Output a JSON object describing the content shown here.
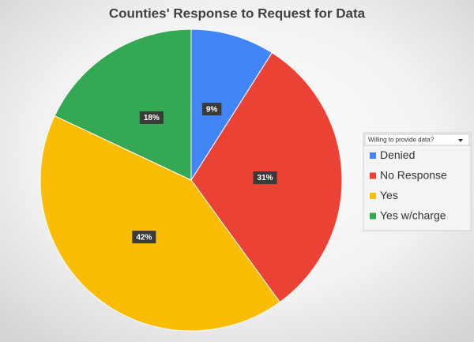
{
  "chart_data": {
    "type": "pie",
    "title": "Counties' Response to Request for Data",
    "legend_title": "Willing  to provide data?",
    "categories": [
      "Denied",
      "No Response",
      "Yes",
      "Yes w/charge"
    ],
    "values": [
      9,
      31,
      42,
      18
    ],
    "value_labels": [
      "9%",
      "31%",
      "42%",
      "18%"
    ],
    "colors": [
      "#4285f4",
      "#ea4335",
      "#fbbc04",
      "#34a853"
    ],
    "legend": "right"
  }
}
